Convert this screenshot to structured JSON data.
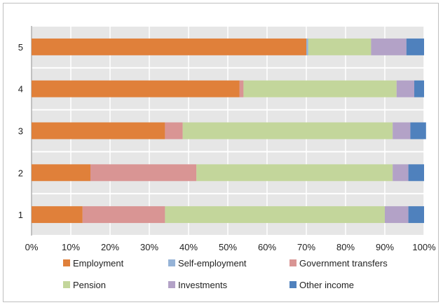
{
  "chart_data": {
    "type": "bar",
    "orientation": "horizontal",
    "stacked": true,
    "percent": true,
    "categories": [
      "1",
      "2",
      "3",
      "4",
      "5"
    ],
    "series": [
      {
        "name": "Employment",
        "color": "#E0803A",
        "values": [
          13,
          15,
          34,
          53,
          70
        ]
      },
      {
        "name": "Self-employment",
        "color": "#95B3D7",
        "values": [
          0,
          0,
          0,
          0,
          0.5
        ]
      },
      {
        "name": "Government transfers",
        "color": "#D99594",
        "values": [
          21,
          27,
          4.5,
          1,
          0
        ]
      },
      {
        "name": "Pension",
        "color": "#C3D69B",
        "values": [
          56,
          50,
          53.5,
          39,
          16
        ]
      },
      {
        "name": "Investments",
        "color": "#B3A2C7",
        "values": [
          6,
          4,
          4.5,
          4.5,
          9
        ]
      },
      {
        "name": "Other income",
        "color": "#4F81BD",
        "values": [
          4,
          4,
          4,
          2.5,
          4.5
        ]
      }
    ],
    "xlim": [
      0,
      100
    ],
    "xticks": [
      "0%",
      "10%",
      "20%",
      "30%",
      "40%",
      "50%",
      "60%",
      "70%",
      "80%",
      "90%",
      "100%"
    ],
    "grid": true,
    "plot_background": "#E6E6E6",
    "legend_position": "bottom"
  }
}
